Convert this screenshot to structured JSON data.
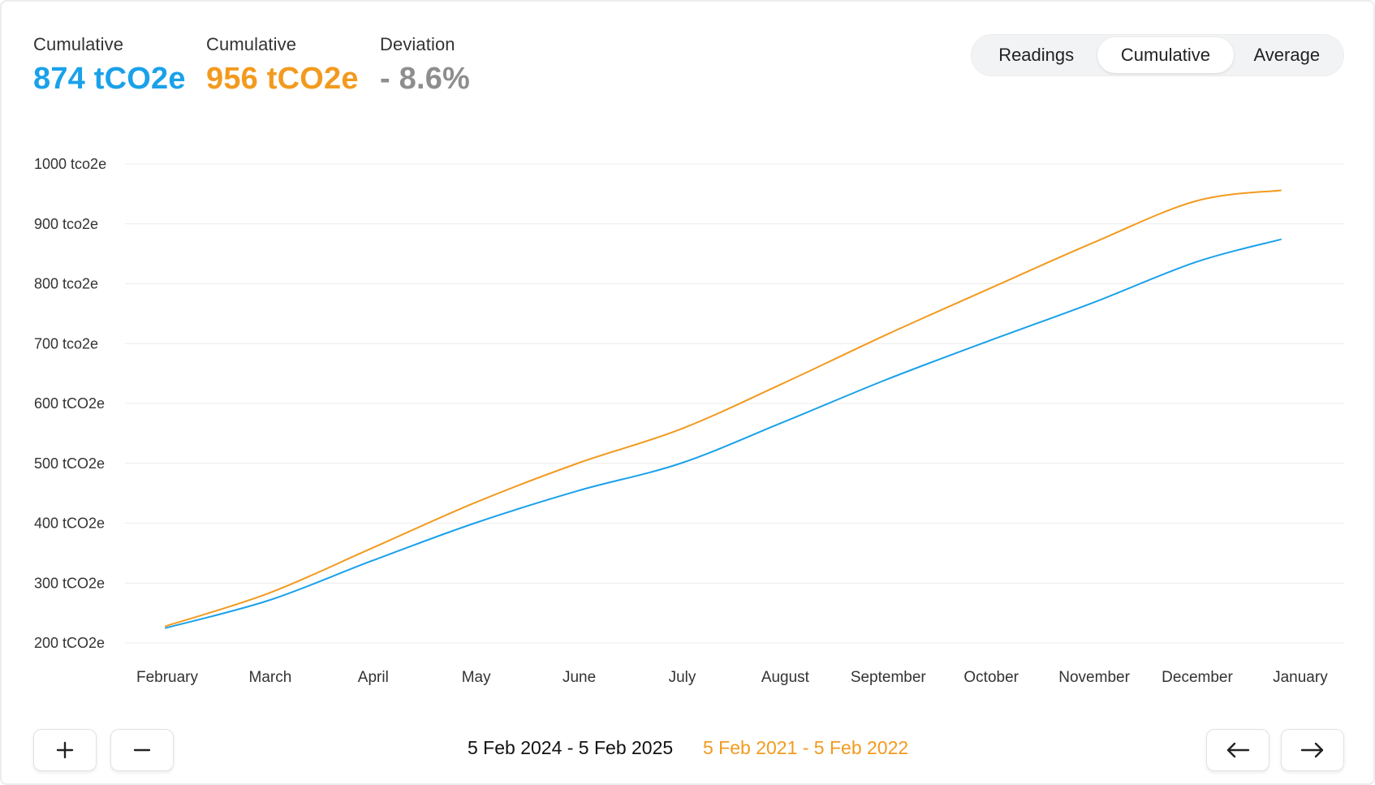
{
  "stats": [
    {
      "label": "Cumulative",
      "value": "874 tCO2e"
    },
    {
      "label": "Cumulative",
      "value": "956 tCO2e"
    },
    {
      "label": "Deviation",
      "value": "- 8.6%"
    }
  ],
  "toggle": {
    "options": [
      "Readings",
      "Cumulative",
      "Average"
    ],
    "selected": "Cumulative"
  },
  "chart_data": {
    "type": "line",
    "categories": [
      "February",
      "March",
      "April",
      "May",
      "June",
      "July",
      "August",
      "September",
      "October",
      "November",
      "December",
      "January"
    ],
    "y_tick_labels": [
      "1000 tco2e",
      "900 tco2e",
      "800 tco2e",
      "700 tco2e",
      "600 tCO2e",
      "500 tCO2e",
      "400 tCO2e",
      "300 tCO2e",
      "200 tCO2e"
    ],
    "ylim": [
      200,
      1000
    ],
    "grid": true,
    "series": [
      {
        "period": "5 Feb 2021 - 5 Feb 2022",
        "color": "#f29a1f",
        "values": [
          228,
          283,
          358,
          434,
          500,
          557,
          634,
          715,
          792,
          868,
          938,
          956
        ]
      },
      {
        "period": "5 Feb 2024 - 5 Feb 2025",
        "color": "#1aa1ea",
        "values": [
          225,
          271,
          337,
          400,
          454,
          500,
          569,
          640,
          705,
          768,
          836,
          874
        ]
      }
    ]
  },
  "footer": {
    "range_current": "5 Feb 2024 - 5 Feb 2025",
    "range_compare": "5 Feb 2021 - 5 Feb 2022"
  }
}
